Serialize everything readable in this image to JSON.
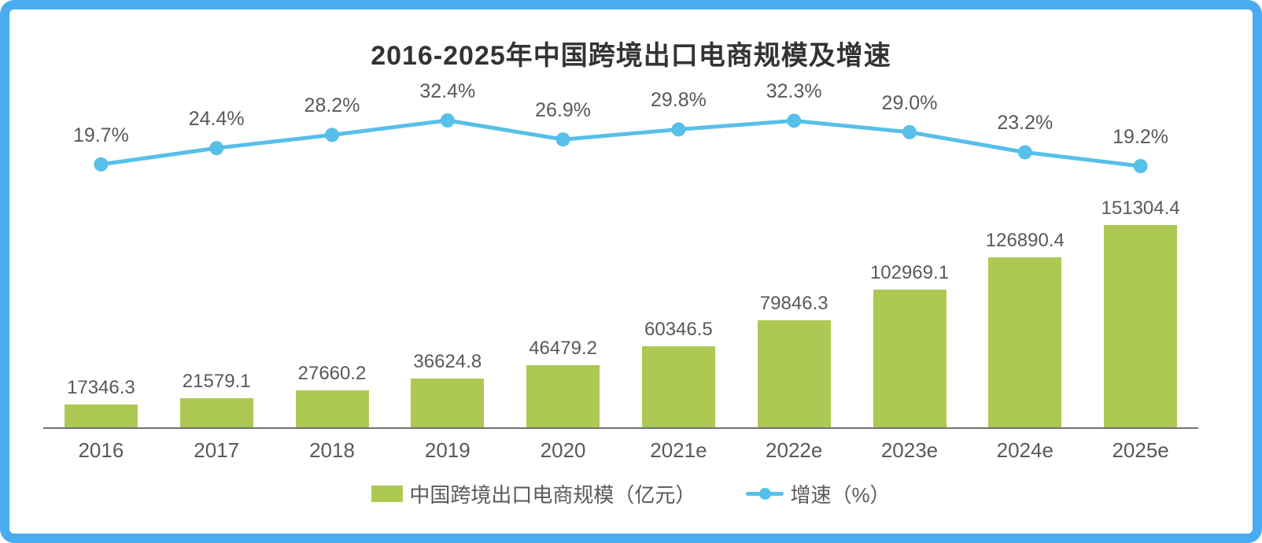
{
  "frame": {
    "border_color": "#4aacf0",
    "background": "#ffffff"
  },
  "chart_data": {
    "type": "combo",
    "title": "2016-2025年中国跨境出口电商规模及增速",
    "categories": [
      "2016",
      "2017",
      "2018",
      "2019",
      "2020",
      "2021e",
      "2022e",
      "2023e",
      "2024e",
      "2025e"
    ],
    "series": [
      {
        "name": "中国跨境出口电商规模（亿元）",
        "type": "bar",
        "color": "#adc953",
        "values": [
          17346.3,
          21579.1,
          27660.2,
          36624.8,
          46479.2,
          60346.5,
          79846.3,
          102969.1,
          126890.4,
          151304.4
        ],
        "labels": [
          "17346.3",
          "21579.1",
          "27660.2",
          "36624.8",
          "46479.2",
          "60346.5",
          "79846.3",
          "102969.1",
          "126890.4",
          "151304.4"
        ]
      },
      {
        "name": "增速（%）",
        "type": "line",
        "color": "#57bfe9",
        "values": [
          19.7,
          24.4,
          28.2,
          32.4,
          26.9,
          29.8,
          32.3,
          29.0,
          23.2,
          19.2
        ],
        "labels": [
          "19.7%",
          "24.4%",
          "28.2%",
          "32.4%",
          "26.9%",
          "29.8%",
          "32.3%",
          "29.0%",
          "23.2%",
          "19.2%"
        ]
      }
    ],
    "value_labels": true,
    "grid": false,
    "legend_position": "bottom",
    "axes": {
      "x_visible": true,
      "y_left_visible": false,
      "y_right_visible": false
    },
    "text_color": "#595959",
    "axis_line_color": "#737373"
  }
}
